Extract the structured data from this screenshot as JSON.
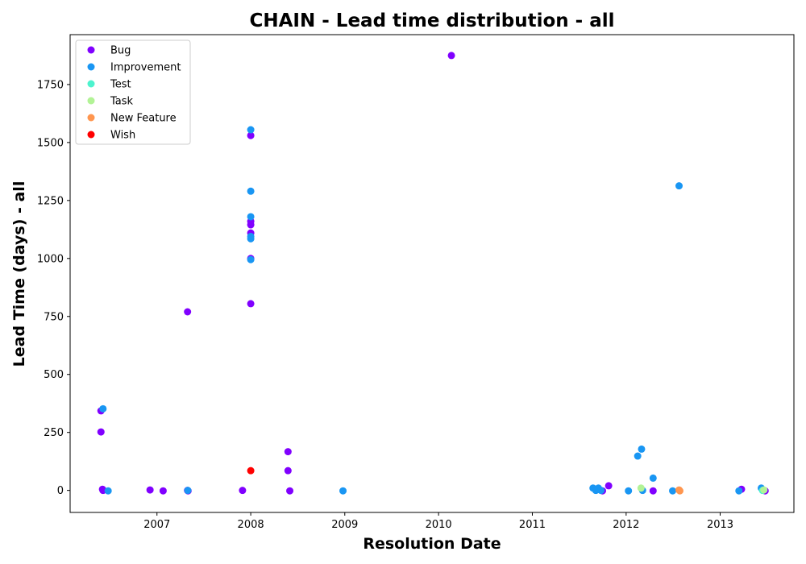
{
  "chart_data": {
    "type": "scatter",
    "title": "CHAIN - Lead time distribution - all",
    "xlabel": "Resolution Date",
    "ylabel": "Lead Time (days) - all",
    "xlim": [
      "2006-01-28",
      "2013-10-15"
    ],
    "ylim": [
      -95,
      1965
    ],
    "x_ticks": [
      "2007-01-01",
      "2008-01-01",
      "2009-01-01",
      "2010-01-01",
      "2011-01-01",
      "2012-01-01",
      "2013-01-01"
    ],
    "x_tick_labels": [
      "2007",
      "2008",
      "2009",
      "2010",
      "2011",
      "2012",
      "2013"
    ],
    "y_ticks": [
      0,
      250,
      500,
      750,
      1000,
      1250,
      1500,
      1750
    ],
    "y_tick_labels": [
      "0",
      "250",
      "500",
      "750",
      "1000",
      "1250",
      "1500",
      "1750"
    ],
    "grid": false,
    "legend_position": "top-left",
    "series": [
      {
        "name": "Bug",
        "color": "#8000ff",
        "points": [
          [
            "2006-05-28",
            343
          ],
          [
            "2006-05-28",
            252
          ],
          [
            "2006-06-03",
            5
          ],
          [
            "2006-06-05",
            0
          ],
          [
            "2006-12-05",
            2
          ],
          [
            "2007-01-25",
            -2
          ],
          [
            "2007-04-30",
            770
          ],
          [
            "2007-04-30",
            0
          ],
          [
            "2007-05-02",
            -2
          ],
          [
            "2007-11-30",
            0
          ],
          [
            "2008-01-01",
            1530
          ],
          [
            "2008-01-01",
            1160
          ],
          [
            "2008-01-01",
            1145
          ],
          [
            "2008-01-01",
            1110
          ],
          [
            "2008-01-01",
            1000
          ],
          [
            "2008-01-01",
            805
          ],
          [
            "2008-05-25",
            167
          ],
          [
            "2008-05-25",
            85
          ],
          [
            "2008-06-01",
            -2
          ],
          [
            "2010-02-20",
            1875
          ],
          [
            "2011-10-01",
            -2
          ],
          [
            "2011-10-25",
            20
          ],
          [
            "2012-04-15",
            -2
          ],
          [
            "2013-03-25",
            5
          ],
          [
            "2013-06-25",
            -2
          ]
        ]
      },
      {
        "name": "Improvement",
        "color": "#1996f3",
        "points": [
          [
            "2006-06-05",
            352
          ],
          [
            "2006-06-25",
            -2
          ],
          [
            "2007-05-01",
            0
          ],
          [
            "2008-01-01",
            1555
          ],
          [
            "2008-01-01",
            1290
          ],
          [
            "2008-01-01",
            1180
          ],
          [
            "2008-01-01",
            1095
          ],
          [
            "2008-01-01",
            1085
          ],
          [
            "2008-01-01",
            995
          ],
          [
            "2008-12-25",
            -2
          ],
          [
            "2011-08-25",
            10
          ],
          [
            "2011-09-05",
            0
          ],
          [
            "2011-09-15",
            10
          ],
          [
            "2011-09-25",
            0
          ],
          [
            "2012-01-10",
            -2
          ],
          [
            "2012-02-15",
            148
          ],
          [
            "2012-03-01",
            178
          ],
          [
            "2012-03-05",
            0
          ],
          [
            "2012-04-15",
            53
          ],
          [
            "2012-06-30",
            -2
          ],
          [
            "2012-07-25",
            1313
          ],
          [
            "2013-03-15",
            -2
          ],
          [
            "2013-06-10",
            10
          ]
        ]
      },
      {
        "name": "Test",
        "color": "#4df3ce",
        "points": [
          [
            "2013-06-15",
            0
          ]
        ]
      },
      {
        "name": "Task",
        "color": "#b2f396",
        "points": [
          [
            "2012-02-28",
            10
          ],
          [
            "2013-06-20",
            2
          ]
        ]
      },
      {
        "name": "New Feature",
        "color": "#ff964f",
        "points": [
          [
            "2012-07-25",
            2
          ],
          [
            "2012-07-28",
            -2
          ]
        ]
      },
      {
        "name": "Wish",
        "color": "#ff0000",
        "points": [
          [
            "2008-01-01",
            85
          ]
        ]
      }
    ]
  }
}
